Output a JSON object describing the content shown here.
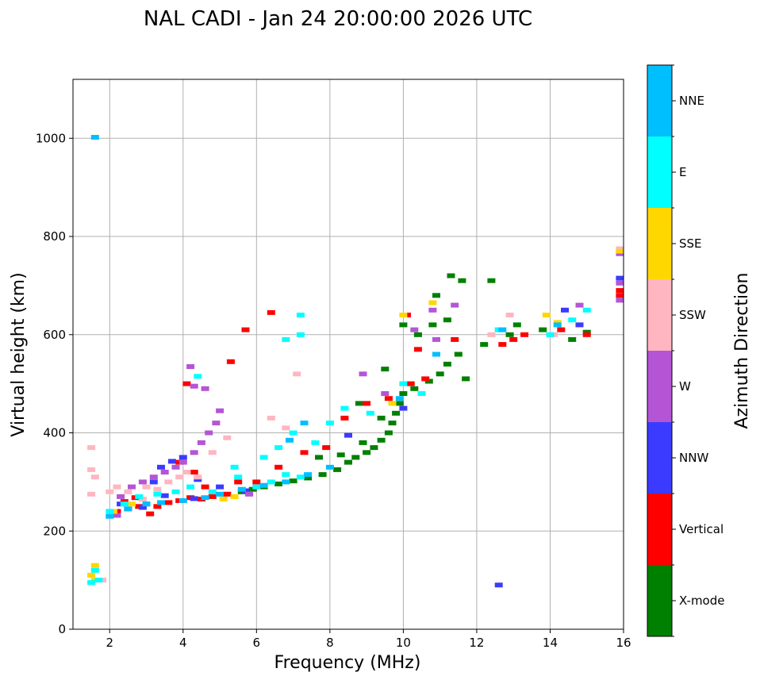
{
  "chart_data": {
    "type": "scatter",
    "title": "NAL CADI - Jan 24 20:00:00 2026 UTC",
    "xlabel": "Frequency (MHz)",
    "ylabel": "Virtual height (km)",
    "xlim": [
      1,
      16
    ],
    "ylim": [
      0,
      1120
    ],
    "xticks": [
      2,
      4,
      6,
      8,
      10,
      12,
      14,
      16
    ],
    "yticks": [
      0,
      200,
      400,
      600,
      800,
      1000
    ],
    "grid": true,
    "colorbar": {
      "title": "Azimuth Direction",
      "categories": [
        "X-mode",
        "Vertical",
        "NNW",
        "W",
        "SSW",
        "SSE",
        "E",
        "NNE"
      ],
      "colors": [
        "#008000",
        "#ff0000",
        "#3b3bff",
        "#b455d6",
        "#ffb6c1",
        "#ffd700",
        "#00ffff",
        "#00bfff"
      ]
    },
    "series": [
      {
        "name": "X-mode",
        "points": [
          [
            5.6,
            280
          ],
          [
            5.9,
            285
          ],
          [
            6.2,
            290
          ],
          [
            6.6,
            296
          ],
          [
            7.0,
            302
          ],
          [
            7.4,
            308
          ],
          [
            7.8,
            315
          ],
          [
            8.2,
            325
          ],
          [
            8.5,
            340
          ],
          [
            8.7,
            350
          ],
          [
            9.0,
            360
          ],
          [
            9.2,
            370
          ],
          [
            9.4,
            385
          ],
          [
            9.6,
            400
          ],
          [
            9.7,
            420
          ],
          [
            9.8,
            440
          ],
          [
            9.9,
            460
          ],
          [
            10.0,
            480
          ],
          [
            8.3,
            355
          ],
          [
            8.9,
            380
          ],
          [
            9.4,
            430
          ],
          [
            10.3,
            490
          ],
          [
            10.7,
            505
          ],
          [
            11.0,
            520
          ],
          [
            11.2,
            540
          ],
          [
            11.5,
            560
          ],
          [
            10.4,
            600
          ],
          [
            10.8,
            620
          ],
          [
            11.2,
            630
          ],
          [
            11.3,
            720
          ],
          [
            11.6,
            710
          ],
          [
            10.9,
            680
          ],
          [
            12.4,
            710
          ],
          [
            12.9,
            600
          ],
          [
            13.1,
            620
          ],
          [
            13.8,
            610
          ],
          [
            14.6,
            590
          ],
          [
            15.0,
            605
          ],
          [
            9.5,
            530
          ],
          [
            8.8,
            460
          ],
          [
            7.7,
            350
          ],
          [
            11.7,
            510
          ],
          [
            10.0,
            620
          ],
          [
            12.2,
            580
          ]
        ]
      },
      {
        "name": "Vertical",
        "points": [
          [
            2.2,
            240
          ],
          [
            2.5,
            245
          ],
          [
            2.8,
            250
          ],
          [
            3.0,
            255
          ],
          [
            3.3,
            250
          ],
          [
            3.6,
            258
          ],
          [
            3.9,
            262
          ],
          [
            4.2,
            268
          ],
          [
            4.5,
            265
          ],
          [
            4.8,
            270
          ],
          [
            5.2,
            275
          ],
          [
            2.4,
            260
          ],
          [
            3.1,
            235
          ],
          [
            2.7,
            268
          ],
          [
            5.5,
            300
          ],
          [
            6.0,
            300
          ],
          [
            6.6,
            330
          ],
          [
            7.3,
            360
          ],
          [
            7.9,
            370
          ],
          [
            8.4,
            430
          ],
          [
            9.0,
            460
          ],
          [
            9.6,
            470
          ],
          [
            10.2,
            500
          ],
          [
            10.6,
            510
          ],
          [
            10.9,
            560
          ],
          [
            11.4,
            590
          ],
          [
            10.1,
            640
          ],
          [
            10.4,
            570
          ],
          [
            12.7,
            580
          ],
          [
            13.0,
            590
          ],
          [
            13.3,
            600
          ],
          [
            14.3,
            610
          ],
          [
            15.0,
            600
          ],
          [
            15.9,
            690
          ],
          [
            15.9,
            680
          ],
          [
            4.6,
            290
          ],
          [
            4.3,
            320
          ],
          [
            5.3,
            545
          ],
          [
            6.4,
            645
          ],
          [
            5.7,
            610
          ],
          [
            4.1,
            500
          ],
          [
            3.9,
            340
          ]
        ]
      },
      {
        "name": "NNW",
        "points": [
          [
            3.4,
            330
          ],
          [
            3.7,
            342
          ],
          [
            4.0,
            350
          ],
          [
            2.3,
            255
          ],
          [
            2.9,
            248
          ],
          [
            3.5,
            272
          ],
          [
            4.3,
            266
          ],
          [
            5.0,
            290
          ],
          [
            8.5,
            395
          ],
          [
            10.0,
            450
          ],
          [
            12.6,
            90
          ],
          [
            14.4,
            650
          ],
          [
            14.8,
            620
          ],
          [
            15.9,
            715
          ],
          [
            4.4,
            305
          ],
          [
            3.2,
            300
          ],
          [
            5.7,
            282
          ]
        ]
      },
      {
        "name": "W",
        "points": [
          [
            2.3,
            270
          ],
          [
            2.6,
            290
          ],
          [
            2.9,
            300
          ],
          [
            3.2,
            310
          ],
          [
            3.5,
            320
          ],
          [
            3.8,
            330
          ],
          [
            4.0,
            340
          ],
          [
            4.3,
            360
          ],
          [
            4.5,
            380
          ],
          [
            4.7,
            400
          ],
          [
            4.9,
            420
          ],
          [
            5.0,
            445
          ],
          [
            4.6,
            490
          ],
          [
            4.3,
            495
          ],
          [
            4.2,
            535
          ],
          [
            10.8,
            650
          ],
          [
            10.9,
            590
          ],
          [
            11.4,
            660
          ],
          [
            15.9,
            765
          ],
          [
            15.9,
            705
          ],
          [
            15.9,
            670
          ],
          [
            14.8,
            660
          ],
          [
            8.9,
            520
          ],
          [
            9.5,
            480
          ],
          [
            10.3,
            610
          ],
          [
            2.2,
            232
          ],
          [
            5.8,
            275
          ]
        ]
      },
      {
        "name": "SSW",
        "points": [
          [
            1.5,
            370
          ],
          [
            1.5,
            325
          ],
          [
            1.6,
            310
          ],
          [
            1.5,
            275
          ],
          [
            2.2,
            290
          ],
          [
            2.5,
            280
          ],
          [
            2.9,
            265
          ],
          [
            3.3,
            285
          ],
          [
            3.6,
            300
          ],
          [
            3.9,
            310
          ],
          [
            4.1,
            320
          ],
          [
            4.4,
            310
          ],
          [
            5.2,
            390
          ],
          [
            6.4,
            430
          ],
          [
            6.8,
            410
          ],
          [
            7.1,
            520
          ],
          [
            12.4,
            600
          ],
          [
            12.9,
            640
          ],
          [
            14.1,
            600
          ],
          [
            15.9,
            775
          ],
          [
            1.8,
            100
          ],
          [
            4.8,
            360
          ],
          [
            3.0,
            290
          ],
          [
            2.0,
            280
          ]
        ]
      },
      {
        "name": "SSE",
        "points": [
          [
            1.5,
            110
          ],
          [
            1.6,
            130
          ],
          [
            2.1,
            240
          ],
          [
            2.6,
            255
          ],
          [
            5.1,
            265
          ],
          [
            5.4,
            270
          ],
          [
            9.7,
            460
          ],
          [
            10.0,
            640
          ],
          [
            10.8,
            665
          ],
          [
            13.9,
            640
          ],
          [
            14.2,
            625
          ],
          [
            15.9,
            770
          ],
          [
            1.6,
            100
          ]
        ]
      },
      {
        "name": "E",
        "points": [
          [
            1.5,
            95
          ],
          [
            1.6,
            120
          ],
          [
            1.7,
            100
          ],
          [
            2.0,
            240
          ],
          [
            2.4,
            255
          ],
          [
            2.8,
            270
          ],
          [
            3.3,
            275
          ],
          [
            3.8,
            280
          ],
          [
            4.2,
            290
          ],
          [
            4.8,
            280
          ],
          [
            5.5,
            310
          ],
          [
            6.0,
            290
          ],
          [
            6.4,
            300
          ],
          [
            6.8,
            315
          ],
          [
            7.2,
            310
          ],
          [
            7.6,
            380
          ],
          [
            8.0,
            420
          ],
          [
            8.4,
            450
          ],
          [
            9.1,
            440
          ],
          [
            10.0,
            500
          ],
          [
            10.5,
            480
          ],
          [
            6.6,
            370
          ],
          [
            7.0,
            400
          ],
          [
            6.8,
            590
          ],
          [
            7.2,
            600
          ],
          [
            7.2,
            640
          ],
          [
            12.6,
            610
          ],
          [
            14.0,
            600
          ],
          [
            14.6,
            630
          ],
          [
            15.0,
            650
          ],
          [
            4.4,
            515
          ],
          [
            5.4,
            330
          ],
          [
            6.2,
            350
          ]
        ]
      },
      {
        "name": "NNE",
        "points": [
          [
            1.6,
            1002
          ],
          [
            2.0,
            230
          ],
          [
            2.5,
            245
          ],
          [
            3.4,
            258
          ],
          [
            4.0,
            262
          ],
          [
            4.6,
            268
          ],
          [
            5.0,
            275
          ],
          [
            5.6,
            285
          ],
          [
            6.2,
            293
          ],
          [
            6.8,
            300
          ],
          [
            7.4,
            315
          ],
          [
            8.0,
            330
          ],
          [
            6.9,
            385
          ],
          [
            7.3,
            420
          ],
          [
            10.9,
            560
          ],
          [
            12.7,
            610
          ],
          [
            14.2,
            620
          ],
          [
            3.0,
            255
          ],
          [
            9.9,
            470
          ]
        ]
      }
    ]
  }
}
